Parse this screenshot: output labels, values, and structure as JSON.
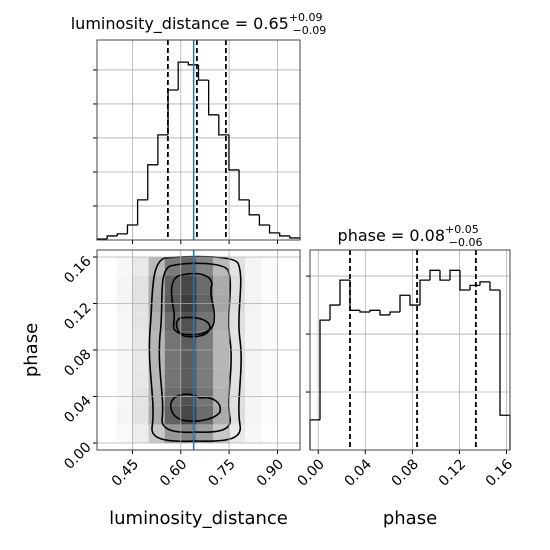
{
  "chart_data": [
    {
      "type": "histogram",
      "title": {
        "text": "luminosity_distance = 0.65",
        "sup": "+0.09",
        "sub": "−0.09"
      },
      "bins": [
        0.34,
        0.3715,
        0.403,
        0.4345,
        0.466,
        0.4975,
        0.529,
        0.5605,
        0.592,
        0.6235,
        0.655,
        0.6865,
        0.718,
        0.7495,
        0.781,
        0.8125,
        0.844,
        0.8755,
        0.907,
        0.9385,
        0.97
      ],
      "values": [
        3,
        12,
        18,
        44,
        118,
        221,
        309,
        441,
        523,
        515,
        470,
        368,
        309,
        206,
        118,
        74,
        44,
        21,
        12,
        6
      ],
      "color": "#000000",
      "quantiles": [
        0.56,
        0.65,
        0.74
      ],
      "truth": 0.64,
      "truth_color": "#1f77b4",
      "xlim": [
        0.34,
        0.97
      ],
      "xticks": [
        0.45,
        0.6,
        0.75,
        0.9
      ],
      "ylim": [
        0,
        588
      ],
      "yticks": [
        100,
        200,
        300,
        400,
        500
      ],
      "grid": true
    },
    {
      "type": "hist2d",
      "xlabel": "luminosity_distance",
      "ylabel": "phase",
      "xlim": [
        0.34,
        0.97
      ],
      "xticks": [
        0.45,
        {
          "value": 0.6,
          "label": "0.60"
        },
        0.75,
        {
          "value": 0.9,
          "label": "0.90"
        }
      ],
      "ylim": [
        -0.006,
        0.166
      ],
      "yticks": [
        {
          "value": 0,
          "label": "0.00"
        },
        0.04,
        0.08,
        0.12,
        0.16
      ],
      "x_bins": [
        0.4,
        0.45,
        0.5,
        0.55,
        0.6,
        0.65,
        0.7,
        0.75,
        0.8,
        0.85,
        0.9
      ],
      "y_bins": [
        0,
        0.016,
        0.032,
        0.048,
        0.064,
        0.08,
        0.096,
        0.112,
        0.128,
        0.144,
        0.16
      ],
      "density": [
        [
          0.03,
          0.09,
          0.27,
          0.51,
          0.6,
          0.48,
          0.27,
          0.11,
          0.04,
          0.01
        ],
        [
          0.05,
          0.14,
          0.41,
          0.77,
          0.9,
          0.72,
          0.41,
          0.16,
          0.05,
          0.02
        ],
        [
          0.04,
          0.13,
          0.38,
          0.72,
          0.85,
          0.68,
          0.38,
          0.15,
          0.05,
          0.02
        ],
        [
          0.04,
          0.12,
          0.36,
          0.68,
          0.8,
          0.64,
          0.36,
          0.14,
          0.05,
          0.02
        ],
        [
          0.04,
          0.12,
          0.36,
          0.68,
          0.8,
          0.64,
          0.36,
          0.14,
          0.05,
          0.02
        ],
        [
          0.04,
          0.12,
          0.36,
          0.68,
          0.8,
          0.64,
          0.36,
          0.14,
          0.05,
          0.02
        ],
        [
          0.04,
          0.13,
          0.38,
          0.72,
          0.85,
          0.68,
          0.38,
          0.15,
          0.05,
          0.02
        ],
        [
          0.05,
          0.14,
          0.43,
          0.81,
          0.95,
          0.76,
          0.43,
          0.17,
          0.06,
          0.02
        ],
        [
          0.05,
          0.14,
          0.41,
          0.77,
          0.9,
          0.72,
          0.41,
          0.16,
          0.05,
          0.02
        ],
        [
          0.04,
          0.11,
          0.34,
          0.64,
          0.75,
          0.6,
          0.34,
          0.14,
          0.05,
          0.02
        ]
      ],
      "truth": 0.64,
      "truth_color": "#1f77b4",
      "grid": true
    },
    {
      "type": "histogram",
      "title": {
        "text": "phase = 0.08",
        "sup": "+0.05",
        "sub": "−0.06"
      },
      "xlabel": "phase",
      "bins": [
        -0.007,
        0.0015,
        0.01,
        0.0185,
        0.027,
        0.0355,
        0.044,
        0.0525,
        0.061,
        0.0695,
        0.078,
        0.0865,
        0.095,
        0.1035,
        0.112,
        0.1205,
        0.129,
        0.1375,
        0.146,
        0.1545,
        0.163
      ],
      "values": [
        52,
        224,
        250,
        293,
        241,
        238,
        241,
        233,
        238,
        267,
        250,
        293,
        310,
        293,
        310,
        276,
        284,
        290,
        276,
        60
      ],
      "color": "#000000",
      "quantiles": [
        0.027,
        0.084,
        0.134
      ],
      "xlim": [
        -0.007,
        0.163
      ],
      "xticks": [
        {
          "value": 0,
          "label": "0.00"
        },
        0.04,
        0.08,
        0.12,
        0.16
      ],
      "ylim": [
        0,
        345
      ],
      "yticks": [
        100,
        200,
        300
      ],
      "grid": true
    }
  ]
}
